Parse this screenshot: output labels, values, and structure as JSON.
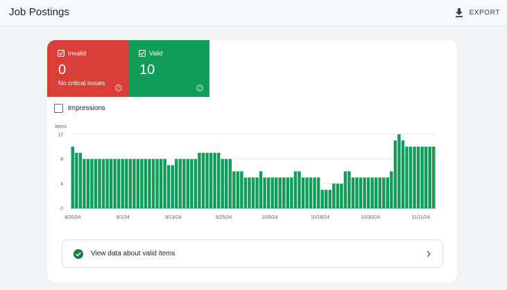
{
  "header": {
    "title": "Job Postings",
    "export_label": "EXPORT",
    "export_icon": "download-icon"
  },
  "summary": {
    "invalid": {
      "label": "Invalid",
      "count": "0",
      "note": "No critical issues",
      "color": "#d93f36"
    },
    "valid": {
      "label": "Valid",
      "count": "10",
      "color": "#0f9d58"
    }
  },
  "impressions_checkbox": {
    "label": "Impressions",
    "checked": false
  },
  "chart_data": {
    "type": "bar",
    "ylabel": "Items",
    "ylim": [
      0,
      12
    ],
    "yticks": [
      "0",
      "4",
      "8",
      "12"
    ],
    "xticks": [
      "8/20/24",
      "9/1/24",
      "9/13/24",
      "9/25/24",
      "10/6/24",
      "10/18/24",
      "10/30/24",
      "11/11/24"
    ],
    "start_date": "2024-08-20",
    "end_date": "2024-11-15",
    "bar_color": "#0f9d58",
    "grid": true,
    "values": [
      10,
      9,
      9,
      8,
      8,
      8,
      8,
      8,
      8,
      8,
      8,
      8,
      8,
      8,
      8,
      8,
      8,
      8,
      8,
      8,
      8,
      8,
      8,
      8,
      8,
      7,
      7,
      8,
      8,
      8,
      8,
      8,
      8,
      9,
      9,
      9,
      9,
      9,
      9,
      8,
      8,
      8,
      6,
      6,
      6,
      5,
      5,
      5,
      5,
      6,
      5,
      5,
      5,
      5,
      5,
      5,
      5,
      5,
      6,
      6,
      5,
      5,
      5,
      5,
      5,
      3,
      3,
      3,
      4,
      4,
      4,
      6,
      6,
      5,
      5,
      5,
      5,
      5,
      5,
      5,
      5,
      5,
      5,
      6,
      11,
      12,
      11,
      10,
      10,
      10,
      10,
      10,
      10,
      10,
      10
    ]
  },
  "footer": {
    "view_label": "View data about valid items"
  }
}
